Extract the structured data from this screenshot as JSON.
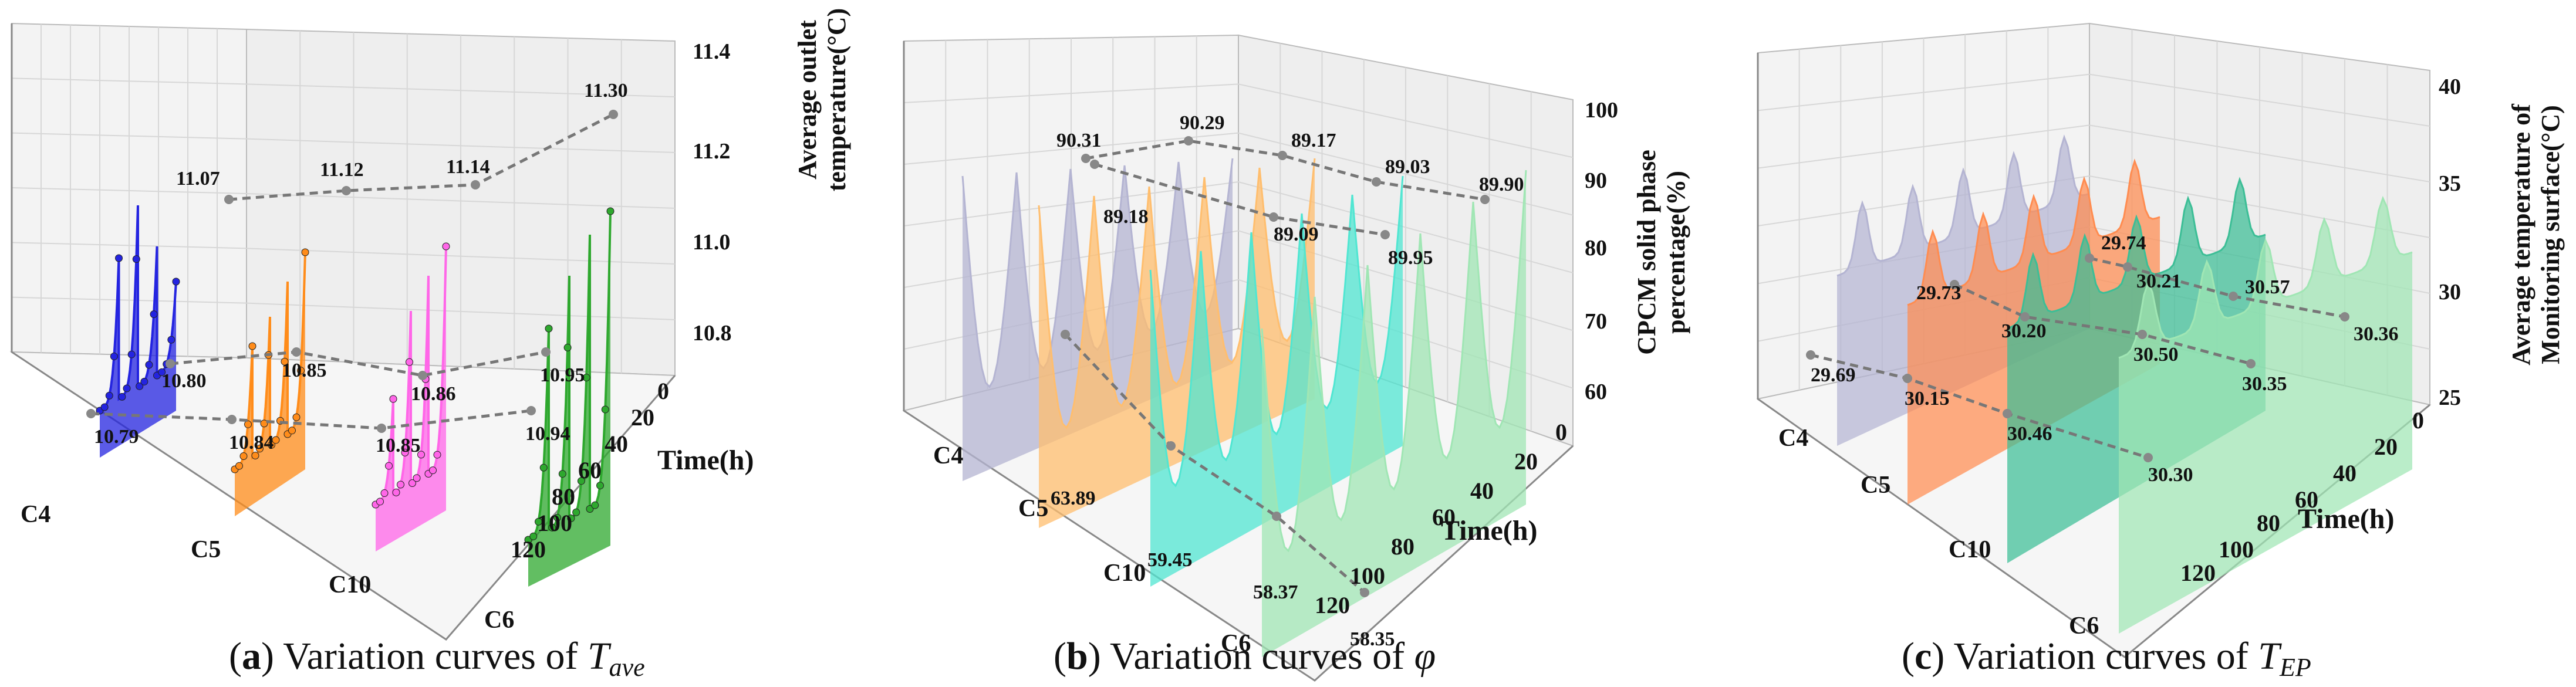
{
  "figure": {
    "panels": [
      {
        "id": "a",
        "caption_letter": "a",
        "caption_text": " Variation curves of ",
        "caption_symbol": "T",
        "caption_sub": "ave",
        "axis_label_line1": "Average outlet",
        "axis_label_line2": "temperature(°C)",
        "time_label": "Time(h)",
        "time_ticks": [
          "0",
          "20",
          "40",
          "60",
          "80",
          "100",
          "120"
        ],
        "case_ticks": [
          "C4",
          "C5",
          "C10",
          "C6"
        ],
        "value_ticks": [
          "10.8",
          "11.0",
          "11.2",
          "11.4"
        ],
        "colors": [
          "#2424e0",
          "#ff8c1a",
          "#ff66e8",
          "#2ea82e"
        ]
      },
      {
        "id": "b",
        "caption_letter": "b",
        "caption_text": " Variation curves of ",
        "caption_symbol": "φ",
        "caption_sub": "",
        "axis_label_line1": "CPCM solid phase",
        "axis_label_line2": "percentage(%)",
        "time_label": "Time(h)",
        "time_ticks": [
          "0",
          "20",
          "40",
          "60",
          "80",
          "100",
          "120"
        ],
        "case_ticks": [
          "C4",
          "C5",
          "C10",
          "C6"
        ],
        "value_ticks": [
          "60",
          "70",
          "80",
          "90",
          "100"
        ],
        "colors": [
          "#b4b4d2",
          "#ffbe6e",
          "#50e6d2",
          "#a0e6b4"
        ]
      },
      {
        "id": "c",
        "caption_letter": "c",
        "caption_text": " Variation curves of ",
        "caption_symbol": "T",
        "caption_sub": "EP",
        "axis_label_line1": "Average temperature of",
        "axis_label_line2": "Monitoring surface(°C)",
        "time_label": "Time(h)",
        "time_ticks": [
          "0",
          "20",
          "40",
          "60",
          "80",
          "100",
          "120"
        ],
        "case_ticks": [
          "C4",
          "C5",
          "C10",
          "C6"
        ],
        "value_ticks": [
          "25",
          "30",
          "35",
          "40"
        ],
        "colors": [
          "#b4b4d2",
          "#ff8c50",
          "#3cbe96",
          "#a0e6b4"
        ]
      }
    ]
  },
  "chart_data": [
    {
      "type": "line",
      "panel": "a",
      "zlabel": "Average outlet temperature(°C)",
      "xlabel": "",
      "ylabel": "Time(h)",
      "categories": [
        "C4",
        "C5",
        "C10",
        "C6"
      ],
      "time_range": [
        0,
        120
      ],
      "zlim": [
        10.7,
        11.4
      ],
      "grid": true,
      "series": [
        {
          "name": "C4",
          "max": 11.07,
          "min": 10.79,
          "min_label": "10.80"
        },
        {
          "name": "C5",
          "max": 11.12,
          "min": 10.84,
          "min_label": "10.85"
        },
        {
          "name": "C10",
          "max": 11.14,
          "min": 10.85,
          "min_label": "10.86"
        },
        {
          "name": "C6",
          "max": 11.3,
          "min": 10.94,
          "min_label": "10.95"
        }
      ],
      "annotations": [
        "11.07",
        "11.12",
        "11.14",
        "11.30",
        "10.80",
        "10.85",
        "10.86",
        "10.95",
        "10.79",
        "10.84",
        "10.85",
        "10.94"
      ]
    },
    {
      "type": "area",
      "panel": "b",
      "zlabel": "CPCM solid phase percentage(%)",
      "xlabel": "",
      "ylabel": "Time(h)",
      "categories": [
        "C4",
        "C5",
        "C10",
        "C6"
      ],
      "time_range": [
        0,
        120
      ],
      "zlim": [
        55,
        105
      ],
      "grid": true,
      "series": [
        {
          "name": "C4",
          "max": 90.31,
          "mid": 89.18,
          "min": 63.89
        },
        {
          "name": "C5",
          "max": 90.29,
          "mid": 89.09,
          "min": 59.45
        },
        {
          "name": "C10",
          "max": 89.17,
          "mid": 89.95,
          "min": 58.37
        },
        {
          "name": "C6",
          "max": 89.03,
          "mid": 89.9,
          "min": 58.35
        }
      ],
      "annotations": [
        "90.31",
        "90.29",
        "89.17",
        "89.03",
        "89.90",
        "89.18",
        "89.09",
        "89.95",
        "63.89",
        "59.45",
        "58.37",
        "58.35"
      ]
    },
    {
      "type": "area",
      "panel": "c",
      "zlabel": "Average temperature of Monitoring surface(°C)",
      "xlabel": "",
      "ylabel": "Time(h)",
      "categories": [
        "C4",
        "C5",
        "C10",
        "C6"
      ],
      "time_range": [
        0,
        120
      ],
      "zlim": [
        25,
        40
      ],
      "grid": true,
      "series": [
        {
          "name": "C4",
          "upper": 29.74,
          "mid": 29.73,
          "lower": 29.69
        },
        {
          "name": "C5",
          "upper": 30.21,
          "mid": 30.2,
          "lower": 30.15
        },
        {
          "name": "C10",
          "upper": 30.57,
          "mid": 30.5,
          "lower": 30.46
        },
        {
          "name": "C6",
          "upper": 30.36,
          "mid": 30.35,
          "lower": 30.3
        }
      ],
      "annotations": [
        "29.74",
        "30.21",
        "30.57",
        "30.36",
        "29.73",
        "30.20",
        "30.50",
        "30.35",
        "29.69",
        "30.15",
        "30.46",
        "30.30"
      ]
    }
  ]
}
